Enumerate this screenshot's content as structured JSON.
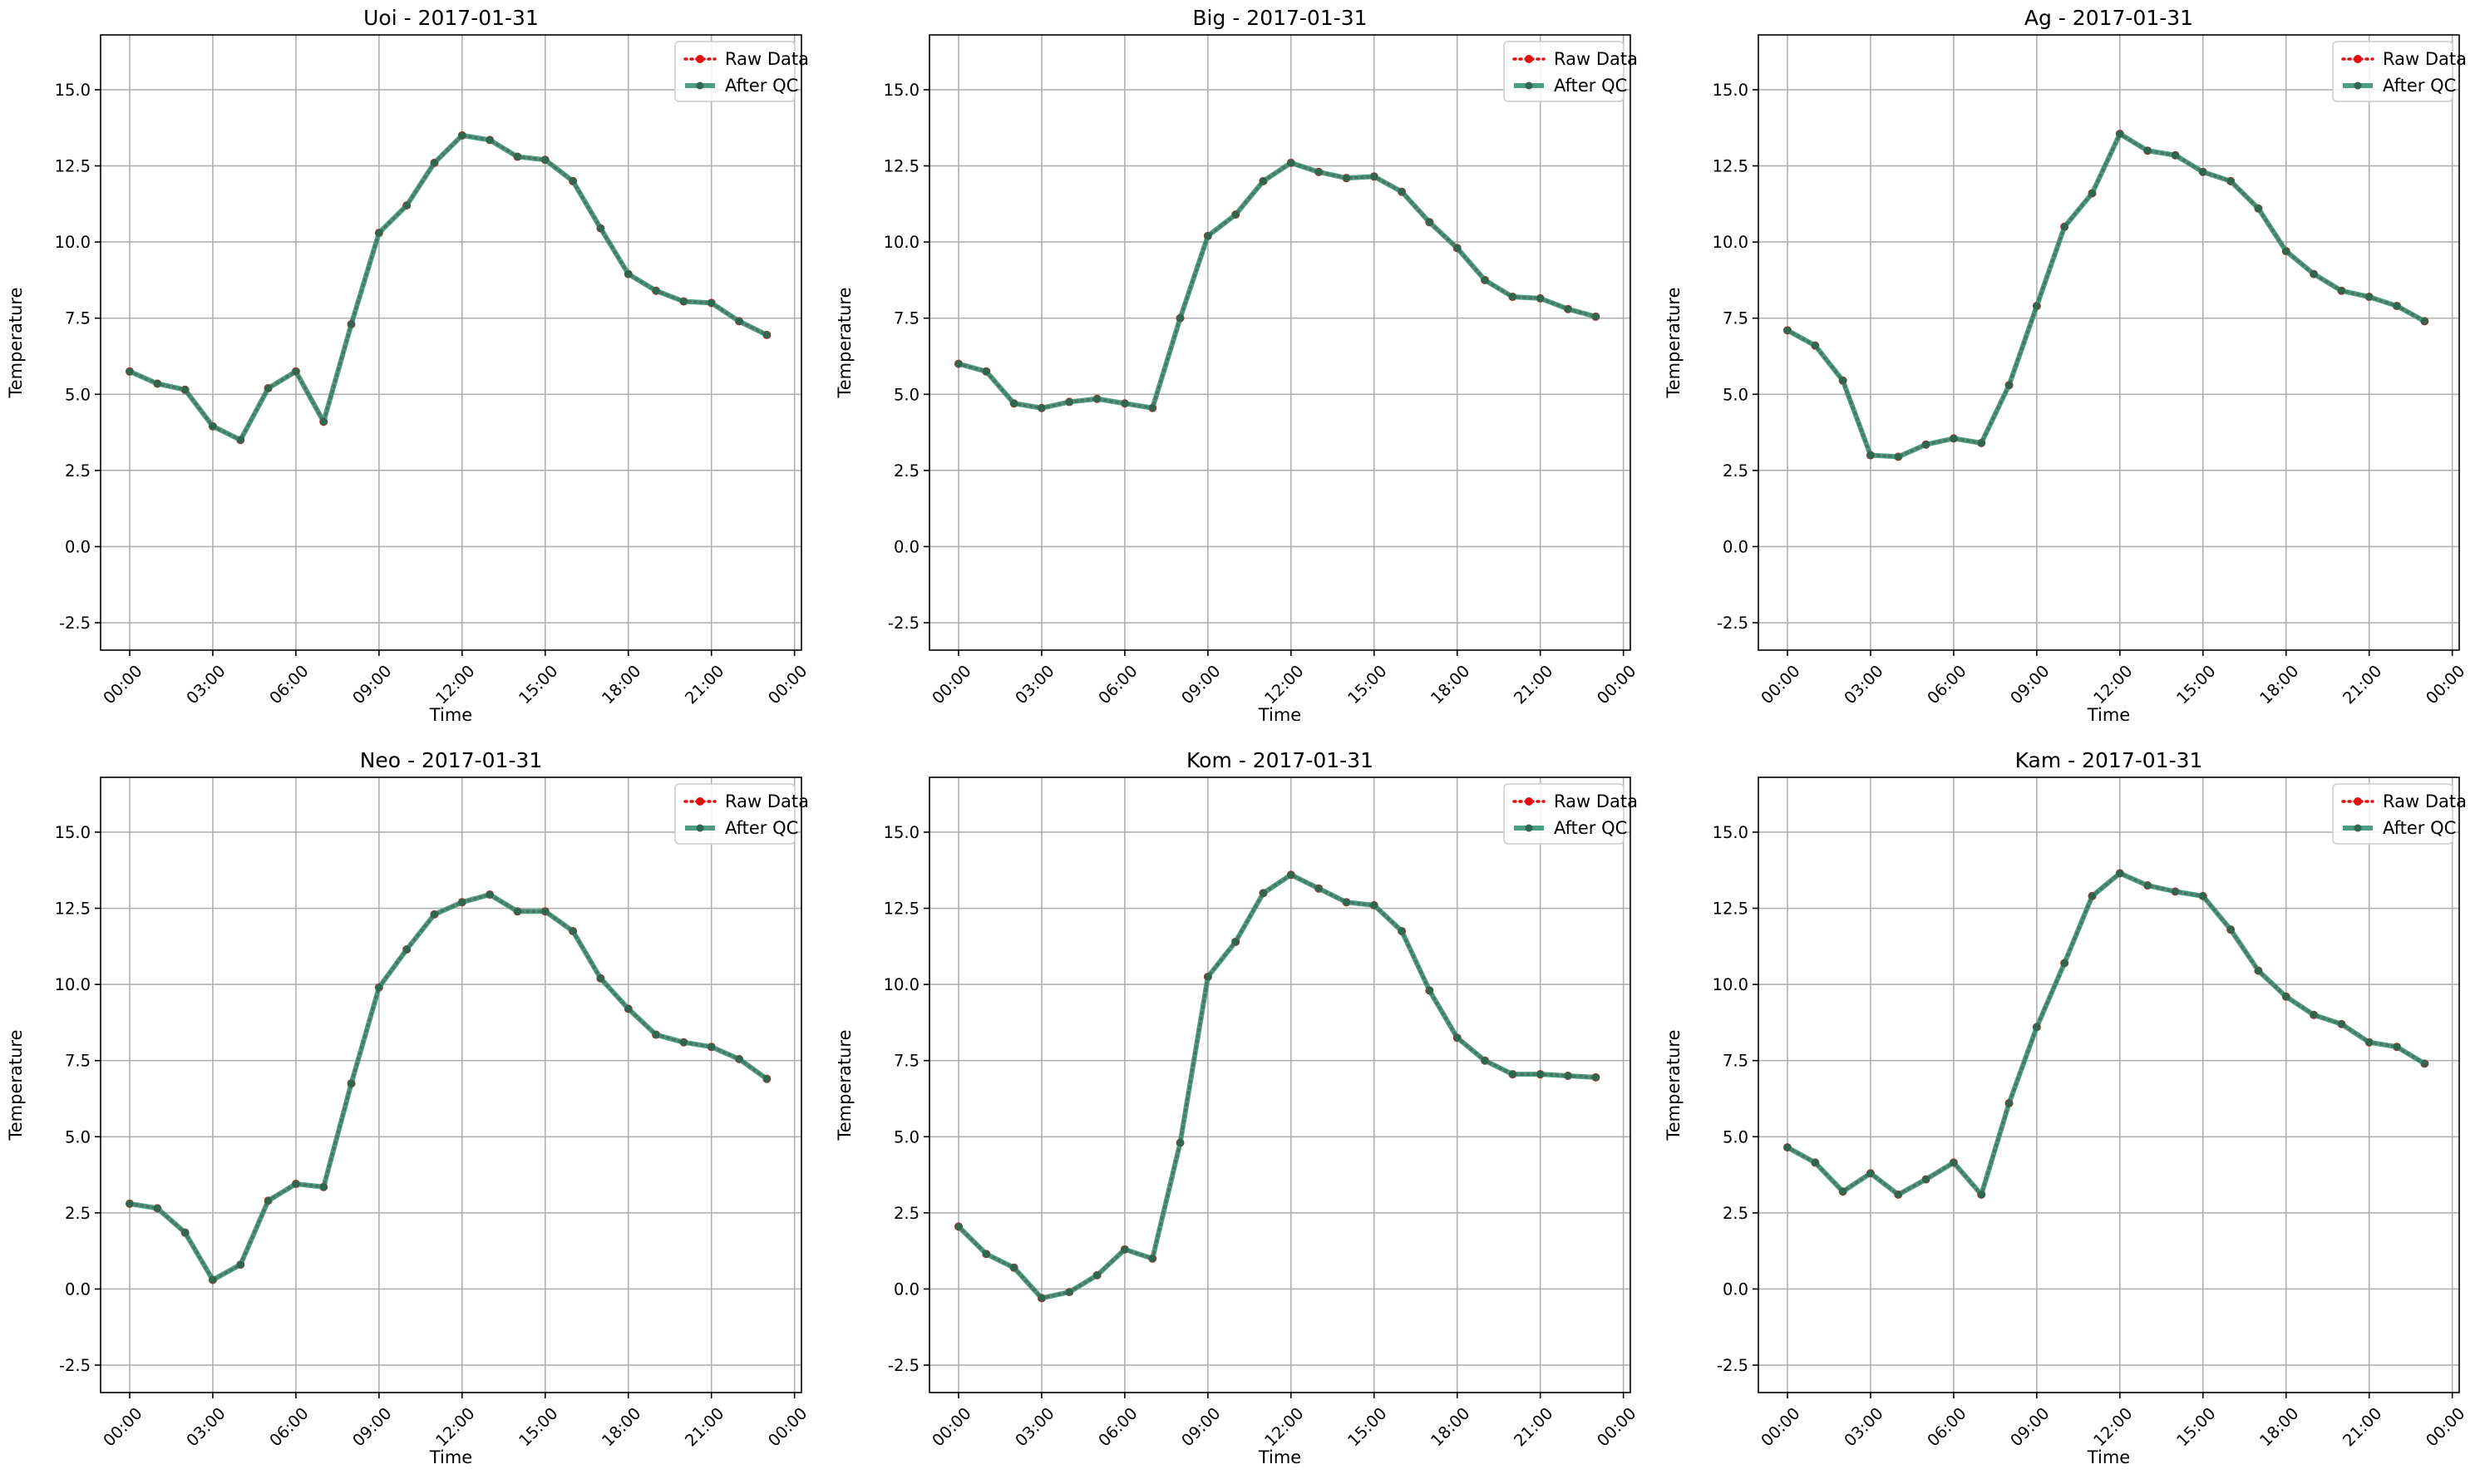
{
  "chart_data": [
    {
      "type": "line",
      "title": "Uoi - 2017-01-31",
      "xlabel": "Time",
      "ylabel": "Temperature",
      "ylim": [
        -3.4,
        16.8
      ],
      "y_ticks": [
        -2.5,
        0.0,
        2.5,
        5.0,
        7.5,
        10.0,
        12.5,
        15.0
      ],
      "x_ticks": [
        "00:00",
        "03:00",
        "06:00",
        "09:00",
        "12:00",
        "15:00",
        "18:00",
        "21:00",
        "00:00"
      ],
      "x_hours": [
        0,
        1,
        2,
        3,
        4,
        5,
        6,
        7,
        8,
        9,
        10,
        11,
        12,
        13,
        14,
        15,
        16,
        17,
        18,
        19,
        20,
        21,
        22,
        23
      ],
      "grid": true,
      "legend_position": "top-right",
      "series": [
        {
          "name": "Raw Data",
          "values": [
            5.75,
            5.35,
            5.15,
            3.95,
            3.5,
            5.2,
            5.75,
            4.1,
            7.3,
            10.3,
            11.2,
            12.6,
            13.5,
            13.35,
            12.8,
            12.7,
            12.0,
            10.45,
            8.95,
            8.4,
            8.05,
            8.0,
            7.4,
            6.95
          ]
        },
        {
          "name": "After QC",
          "values": [
            5.75,
            5.35,
            5.15,
            3.95,
            3.5,
            5.2,
            5.75,
            4.1,
            7.3,
            10.3,
            11.2,
            12.6,
            13.5,
            13.35,
            12.8,
            12.7,
            12.0,
            10.45,
            8.95,
            8.4,
            8.05,
            8.0,
            7.4,
            6.95
          ]
        }
      ]
    },
    {
      "type": "line",
      "title": "Big - 2017-01-31",
      "xlabel": "Time",
      "ylabel": "Temperature",
      "ylim": [
        -3.4,
        16.8
      ],
      "y_ticks": [
        -2.5,
        0.0,
        2.5,
        5.0,
        7.5,
        10.0,
        12.5,
        15.0
      ],
      "x_ticks": [
        "00:00",
        "03:00",
        "06:00",
        "09:00",
        "12:00",
        "15:00",
        "18:00",
        "21:00",
        "00:00"
      ],
      "x_hours": [
        0,
        1,
        2,
        3,
        4,
        5,
        6,
        7,
        8,
        9,
        10,
        11,
        12,
        13,
        14,
        15,
        16,
        17,
        18,
        19,
        20,
        21,
        22,
        23
      ],
      "grid": true,
      "legend_position": "top-right",
      "series": [
        {
          "name": "Raw Data",
          "values": [
            6.0,
            5.75,
            4.7,
            4.55,
            4.75,
            4.85,
            4.7,
            4.55,
            7.5,
            10.2,
            10.9,
            12.0,
            12.6,
            12.3,
            12.1,
            12.15,
            11.65,
            10.65,
            9.8,
            8.75,
            8.2,
            8.15,
            7.8,
            7.55
          ]
        },
        {
          "name": "After QC",
          "values": [
            6.0,
            5.75,
            4.7,
            4.55,
            4.75,
            4.85,
            4.7,
            4.55,
            7.5,
            10.2,
            10.9,
            12.0,
            12.6,
            12.3,
            12.1,
            12.15,
            11.65,
            10.65,
            9.8,
            8.75,
            8.2,
            8.15,
            7.8,
            7.55
          ]
        }
      ]
    },
    {
      "type": "line",
      "title": "Ag - 2017-01-31",
      "xlabel": "Time",
      "ylabel": "Temperature",
      "ylim": [
        -3.4,
        16.8
      ],
      "y_ticks": [
        -2.5,
        0.0,
        2.5,
        5.0,
        7.5,
        10.0,
        12.5,
        15.0
      ],
      "x_ticks": [
        "00:00",
        "03:00",
        "06:00",
        "09:00",
        "12:00",
        "15:00",
        "18:00",
        "21:00",
        "00:00"
      ],
      "x_hours": [
        0,
        1,
        2,
        3,
        4,
        5,
        6,
        7,
        8,
        9,
        10,
        11,
        12,
        13,
        14,
        15,
        16,
        17,
        18,
        19,
        20,
        21,
        22,
        23
      ],
      "grid": true,
      "legend_position": "top-right",
      "series": [
        {
          "name": "Raw Data",
          "values": [
            7.1,
            6.6,
            5.45,
            3.0,
            2.95,
            3.35,
            3.55,
            3.4,
            5.3,
            7.9,
            10.5,
            11.6,
            13.55,
            13.0,
            12.85,
            12.3,
            12.0,
            11.1,
            9.7,
            8.95,
            8.4,
            8.2,
            7.9,
            7.4
          ]
        },
        {
          "name": "After QC",
          "values": [
            7.1,
            6.6,
            5.45,
            3.0,
            2.95,
            3.35,
            3.55,
            3.4,
            5.3,
            7.9,
            10.5,
            11.6,
            13.55,
            13.0,
            12.85,
            12.3,
            12.0,
            11.1,
            9.7,
            8.95,
            8.4,
            8.2,
            7.9,
            7.4
          ]
        }
      ]
    },
    {
      "type": "line",
      "title": "Neo - 2017-01-31",
      "xlabel": "Time",
      "ylabel": "Temperature",
      "ylim": [
        -3.4,
        16.8
      ],
      "y_ticks": [
        -2.5,
        0.0,
        2.5,
        5.0,
        7.5,
        10.0,
        12.5,
        15.0
      ],
      "x_ticks": [
        "00:00",
        "03:00",
        "06:00",
        "09:00",
        "12:00",
        "15:00",
        "18:00",
        "21:00",
        "00:00"
      ],
      "x_hours": [
        0,
        1,
        2,
        3,
        4,
        5,
        6,
        7,
        8,
        9,
        10,
        11,
        12,
        13,
        14,
        15,
        16,
        17,
        18,
        19,
        20,
        21,
        22,
        23
      ],
      "grid": true,
      "legend_position": "top-right",
      "series": [
        {
          "name": "Raw Data",
          "values": [
            2.8,
            2.65,
            1.85,
            0.3,
            0.8,
            2.9,
            3.45,
            3.35,
            6.75,
            9.9,
            11.15,
            12.3,
            12.7,
            12.95,
            12.4,
            12.4,
            11.75,
            10.2,
            9.2,
            8.35,
            8.1,
            7.95,
            7.55,
            6.9
          ]
        },
        {
          "name": "After QC",
          "values": [
            2.8,
            2.65,
            1.85,
            0.3,
            0.8,
            2.9,
            3.45,
            3.35,
            6.75,
            9.9,
            11.15,
            12.3,
            12.7,
            12.95,
            12.4,
            12.4,
            11.75,
            10.2,
            9.2,
            8.35,
            8.1,
            7.95,
            7.55,
            6.9
          ]
        }
      ]
    },
    {
      "type": "line",
      "title": "Kom - 2017-01-31",
      "xlabel": "Time",
      "ylabel": "Temperature",
      "ylim": [
        -3.4,
        16.8
      ],
      "y_ticks": [
        -2.5,
        0.0,
        2.5,
        5.0,
        7.5,
        10.0,
        12.5,
        15.0
      ],
      "x_ticks": [
        "00:00",
        "03:00",
        "06:00",
        "09:00",
        "12:00",
        "15:00",
        "18:00",
        "21:00",
        "00:00"
      ],
      "x_hours": [
        0,
        1,
        2,
        3,
        4,
        5,
        6,
        7,
        8,
        9,
        10,
        11,
        12,
        13,
        14,
        15,
        16,
        17,
        18,
        19,
        20,
        21,
        22,
        23
      ],
      "grid": true,
      "legend_position": "top-right",
      "series": [
        {
          "name": "Raw Data",
          "values": [
            2.05,
            1.15,
            0.7,
            -0.3,
            -0.1,
            0.45,
            1.3,
            1.0,
            4.8,
            10.25,
            11.4,
            13.0,
            13.6,
            13.15,
            12.7,
            12.6,
            11.75,
            9.8,
            8.25,
            7.5,
            7.05,
            7.05,
            7.0,
            6.95
          ]
        },
        {
          "name": "After QC",
          "values": [
            2.05,
            1.15,
            0.7,
            -0.3,
            -0.1,
            0.45,
            1.3,
            1.0,
            4.8,
            10.25,
            11.4,
            13.0,
            13.6,
            13.15,
            12.7,
            12.6,
            11.75,
            9.8,
            8.25,
            7.5,
            7.05,
            7.05,
            7.0,
            6.95
          ]
        }
      ]
    },
    {
      "type": "line",
      "title": "Kam - 2017-01-31",
      "xlabel": "Time",
      "ylabel": "Temperature",
      "ylim": [
        -3.4,
        16.8
      ],
      "y_ticks": [
        -2.5,
        0.0,
        2.5,
        5.0,
        7.5,
        10.0,
        12.5,
        15.0
      ],
      "x_ticks": [
        "00:00",
        "03:00",
        "06:00",
        "09:00",
        "12:00",
        "15:00",
        "18:00",
        "21:00",
        "00:00"
      ],
      "x_hours": [
        0,
        1,
        2,
        3,
        4,
        5,
        6,
        7,
        8,
        9,
        10,
        11,
        12,
        13,
        14,
        15,
        16,
        17,
        18,
        19,
        20,
        21,
        22,
        23
      ],
      "grid": true,
      "legend_position": "top-right",
      "series": [
        {
          "name": "Raw Data",
          "values": [
            4.65,
            4.15,
            3.2,
            3.8,
            3.1,
            3.6,
            4.15,
            3.1,
            6.1,
            8.6,
            10.7,
            12.9,
            13.65,
            13.25,
            13.05,
            12.9,
            11.8,
            10.45,
            9.6,
            9.0,
            8.7,
            8.1,
            7.95,
            7.4
          ]
        },
        {
          "name": "After QC",
          "values": [
            4.65,
            4.15,
            3.2,
            3.8,
            3.1,
            3.6,
            4.15,
            3.1,
            6.1,
            8.6,
            10.7,
            12.9,
            13.65,
            13.25,
            13.05,
            12.9,
            11.8,
            10.45,
            9.6,
            9.0,
            8.7,
            8.1,
            7.95,
            7.4
          ]
        }
      ]
    }
  ],
  "style": {
    "raw_color": "#e30f0f",
    "qc_color": "#2e8b6e",
    "qc_marker_color": "#2f6650",
    "grid_color": "#b0b0b0"
  }
}
